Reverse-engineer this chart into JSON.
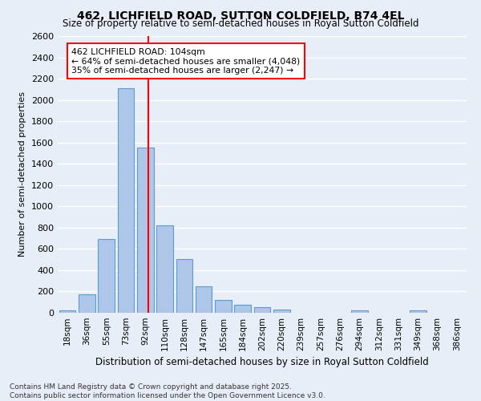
{
  "title": "462, LICHFIELD ROAD, SUTTON COLDFIELD, B74 4EL",
  "subtitle": "Size of property relative to semi-detached houses in Royal Sutton Coldfield",
  "xlabel": "Distribution of semi-detached houses by size in Royal Sutton Coldfield",
  "ylabel": "Number of semi-detached properties",
  "categories": [
    "18sqm",
    "36sqm",
    "55sqm",
    "73sqm",
    "92sqm",
    "110sqm",
    "128sqm",
    "147sqm",
    "165sqm",
    "184sqm",
    "202sqm",
    "220sqm",
    "239sqm",
    "257sqm",
    "276sqm",
    "294sqm",
    "312sqm",
    "331sqm",
    "349sqm",
    "368sqm",
    "386sqm"
  ],
  "values": [
    20,
    175,
    695,
    2110,
    1550,
    820,
    505,
    250,
    120,
    75,
    55,
    30,
    0,
    0,
    0,
    20,
    0,
    0,
    20,
    0,
    0
  ],
  "bar_color": "#aec6e8",
  "bar_edge_color": "#5b9bd5",
  "background_color": "#e8eef7",
  "grid_color": "#ffffff",
  "vline_color": "red",
  "annotation_text": "462 LICHFIELD ROAD: 104sqm\n← 64% of semi-detached houses are smaller (4,048)\n35% of semi-detached houses are larger (2,247) →",
  "ylim": [
    0,
    2600
  ],
  "yticks": [
    0,
    200,
    400,
    600,
    800,
    1000,
    1200,
    1400,
    1600,
    1800,
    2000,
    2200,
    2400,
    2600
  ],
  "footnote": "Contains HM Land Registry data © Crown copyright and database right 2025.\nContains public sector information licensed under the Open Government Licence v3.0."
}
